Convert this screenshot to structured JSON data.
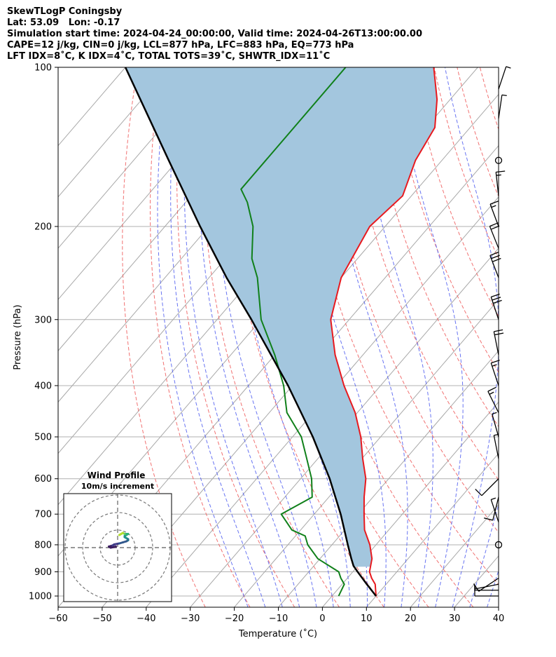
{
  "header": {
    "line1": "SkewTLogP Coningsby",
    "line2": "Lat: 53.09   Lon: -0.17",
    "line3": "Simulation start time: 2024-04-24_00:00:00, Valid time: 2024-04-26T13:00:00.00",
    "line4": "CAPE=12 j/kg, CIN=0 j/kg, LCL=877 hPa, LFC=883 hPa, EQ=773 hPa",
    "line5": "LFT IDX=8$^\\circ$C, K IDX=4$^\\circ$C, TOTAL TOTS=39$^\\circ$C, SHWTR_IDX=11$^\\circ$C"
  },
  "header_display": {
    "line5": "LFT IDX=8˚C, K IDX=4˚C, TOTAL TOTS=39˚C, SHWTR_IDX=11˚C"
  },
  "chart_data": {
    "type": "line",
    "subtype": "skew-t log-p",
    "xlabel": "Temperature ($^\\circ$C)",
    "xlabel_display": "Temperature (˚C)",
    "ylabel": "Pressure (hPa)",
    "xlim": [
      -60,
      40
    ],
    "ylim": [
      1050,
      100
    ],
    "y_scale": "log",
    "x_ticks": [
      -60,
      -50,
      -40,
      -30,
      -20,
      -10,
      0,
      10,
      20,
      30,
      40
    ],
    "y_ticks": [
      1000,
      900,
      800,
      700,
      600,
      500,
      400,
      300,
      200,
      100
    ],
    "grid": true,
    "colors": {
      "temperature": "#e8191e",
      "dewpoint": "#10801a",
      "parcel": "#000000",
      "cape_fill": "#a3c6de",
      "dry_adiabat": "#f06262",
      "moist_adiabat": "#4d5cf0",
      "isotherm": "#999999"
    },
    "series": [
      {
        "name": "Temperature",
        "p": [
          1000,
          950,
          925,
          900,
          850,
          800,
          750,
          700,
          650,
          600,
          550,
          500,
          450,
          400,
          350,
          300,
          250,
          200,
          175,
          150,
          130,
          115,
          100
        ],
        "t": [
          10,
          7.5,
          5.5,
          3.8,
          1.8,
          -1.4,
          -5.5,
          -8.7,
          -12,
          -15.2,
          -19.8,
          -24.5,
          -30.5,
          -38.3,
          -46.3,
          -54.2,
          -60,
          -63.5,
          -62,
          -66,
          -68,
          -73,
          -80
        ]
      },
      {
        "name": "Dewpoint",
        "p": [
          1000,
          950,
          925,
          900,
          850,
          800,
          770,
          750,
          700,
          650,
          600,
          550,
          500,
          450,
          400,
          350,
          300,
          250,
          230,
          200,
          180,
          170,
          100
        ],
        "t": [
          1.5,
          0.5,
          -1.5,
          -3.2,
          -10.5,
          -15.5,
          -17.8,
          -22,
          -27.5,
          -23.8,
          -27.5,
          -32.5,
          -38,
          -46,
          -52,
          -60,
          -70,
          -79,
          -84,
          -90,
          -96,
          -100,
          -100
        ]
      },
      {
        "name": "Parcel",
        "p": [
          1000,
          950,
          900,
          877,
          850,
          800,
          700,
          600,
          500,
          400,
          300,
          250,
          200,
          150,
          100
        ],
        "t": [
          10,
          5.6,
          1.1,
          -1,
          -2.9,
          -6.4,
          -14,
          -23.4,
          -35.4,
          -51,
          -72.2,
          -86,
          -102,
          -122,
          -150
        ]
      }
    ],
    "wind_barbs": [
      {
        "p": 1000,
        "u": 4,
        "v": 0
      },
      {
        "p": 975,
        "u": 5,
        "v": 0
      },
      {
        "p": 950,
        "u": 5,
        "v": 1
      },
      {
        "p": 925,
        "u": 3,
        "v": 2
      },
      {
        "p": 800,
        "calm": true
      },
      {
        "p": 725,
        "u": 2,
        "v": -6
      },
      {
        "p": 650,
        "u": 1,
        "v": 4
      },
      {
        "p": 600,
        "u": 1,
        "v": 1
      },
      {
        "p": 550,
        "u": 1,
        "v": -5
      },
      {
        "p": 500,
        "u": 2,
        "v": -7
      },
      {
        "p": 450,
        "u": 4,
        "v": -8
      },
      {
        "p": 400,
        "u": 3,
        "v": -9
      },
      {
        "p": 350,
        "u": 2,
        "v": -10
      },
      {
        "p": 300,
        "u": 4,
        "v": -12
      },
      {
        "p": 250,
        "u": 5,
        "v": -13
      },
      {
        "p": 220,
        "u": 4,
        "v": -10
      },
      {
        "p": 200,
        "u": 3,
        "v": -8
      },
      {
        "p": 175,
        "u": 1,
        "v": -9
      },
      {
        "p": 150,
        "calm": true
      },
      {
        "p": 125,
        "u": -1,
        "v": -7
      },
      {
        "p": 110,
        "u": -2,
        "v": -6
      }
    ],
    "hodograph": {
      "title": "Wind Profile",
      "subtitle": "10m/s increment",
      "rings": [
        10,
        20,
        30
      ],
      "u": [
        -1,
        -4,
        -5,
        -3,
        -2,
        1,
        3,
        5,
        6,
        6,
        5,
        4,
        4,
        5,
        6,
        4,
        3,
        2,
        1,
        3
      ],
      "v": [
        1,
        0,
        1,
        2,
        3,
        4,
        5,
        6,
        7,
        8,
        9,
        10,
        11,
        12,
        13,
        13,
        14,
        13,
        12,
        14
      ]
    }
  }
}
